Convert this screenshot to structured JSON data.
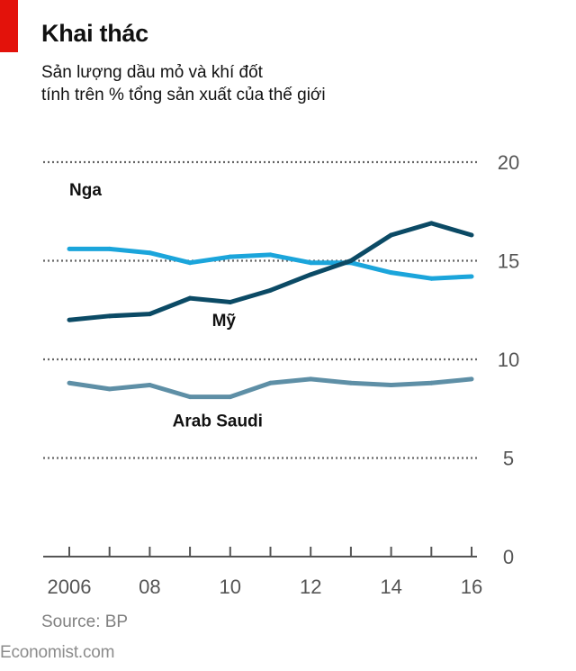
{
  "header": {
    "title": "Khai thác",
    "subtitle_line1": "Sản lượng dầu mỏ và khí đốt",
    "subtitle_line2": "tính trên % tổng sản xuất của thế giới"
  },
  "footer": {
    "source": "Source: BP",
    "brand": "Economist.com"
  },
  "colors": {
    "brand_red": "#e3120b",
    "nga": "#1ba5db",
    "my": "#0b4a65",
    "arab_saudi": "#5e8fa6"
  },
  "chart_data": {
    "type": "line",
    "x": [
      2006,
      2007,
      2008,
      2009,
      2010,
      2011,
      2012,
      2013,
      2014,
      2015,
      2016
    ],
    "x_tick_values": [
      2006,
      2008,
      2010,
      2012,
      2014,
      2016
    ],
    "x_tick_labels": [
      "2006",
      "08",
      "10",
      "12",
      "14",
      "16"
    ],
    "y_ticks": [
      0,
      5,
      10,
      15,
      20
    ],
    "ylim": [
      0,
      20
    ],
    "grid": "dotted horizontal",
    "series": [
      {
        "name": "Nga",
        "color": "#1ba5db",
        "values": [
          15.6,
          15.6,
          15.4,
          14.9,
          15.2,
          15.3,
          14.9,
          14.9,
          14.4,
          14.1,
          14.2
        ]
      },
      {
        "name": "Mỹ",
        "color": "#0b4a65",
        "values": [
          12.0,
          12.2,
          12.3,
          13.1,
          12.9,
          13.5,
          14.3,
          15.0,
          16.3,
          16.9,
          16.3
        ]
      },
      {
        "name": "Arab Saudi",
        "color": "#5e8fa6",
        "values": [
          8.8,
          8.5,
          8.7,
          8.1,
          8.1,
          8.8,
          9.0,
          8.8,
          8.7,
          8.8,
          9.0
        ]
      }
    ]
  }
}
